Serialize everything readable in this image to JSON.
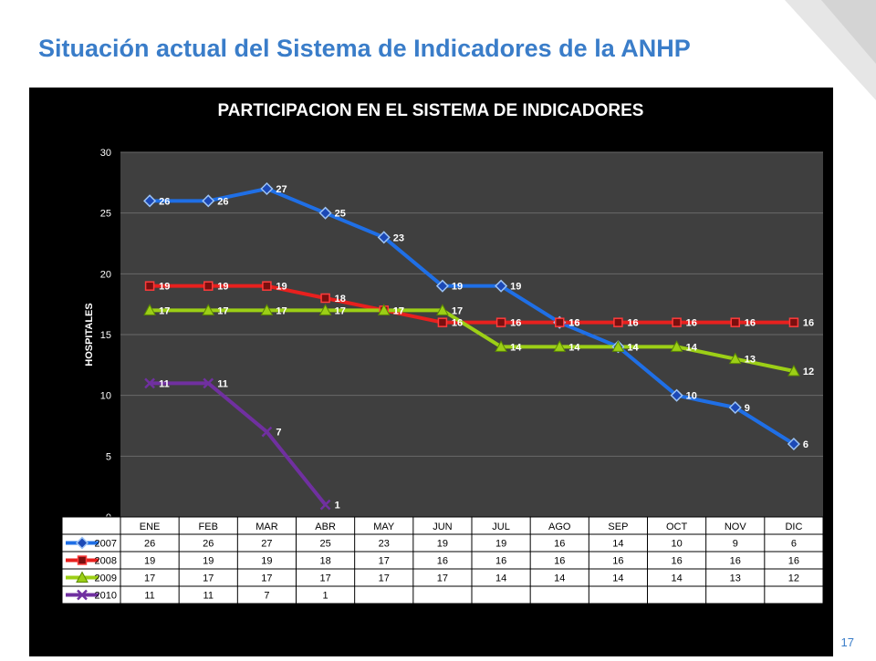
{
  "slide": {
    "title": "Situación actual del Sistema de Indicadores de la ANHP",
    "page_number": "17"
  },
  "colors": {
    "title": "#3a7dc9",
    "panel_bg": "#000000",
    "plot_bg": "#3f3f3f",
    "grid": "#6a6a6a",
    "table_bg": "#ffffff"
  },
  "chart_data": {
    "type": "line",
    "title": "PARTICIPACION EN EL SISTEMA DE INDICADORES",
    "xlabel": "",
    "ylabel": "HOSPITALES",
    "ylim": [
      0,
      30
    ],
    "yticks": [
      0,
      5,
      10,
      15,
      20,
      25,
      30
    ],
    "grid": true,
    "legend": "data-table",
    "categories": [
      "ENE",
      "FEB",
      "MAR",
      "ABR",
      "MAY",
      "JUN",
      "JUL",
      "AGO",
      "SEP",
      "OCT",
      "NOV",
      "DIC"
    ],
    "series": [
      {
        "name": "2007",
        "color": "#1f6fe6",
        "marker": "diamond",
        "values": [
          26,
          26,
          27,
          25,
          23,
          19,
          19,
          16,
          14,
          10,
          9,
          6
        ]
      },
      {
        "name": "2008",
        "color": "#e8201e",
        "marker": "square",
        "values": [
          19,
          19,
          19,
          18,
          17,
          16,
          16,
          16,
          16,
          16,
          16,
          16
        ]
      },
      {
        "name": "2009",
        "color": "#9ccf16",
        "marker": "triangle",
        "values": [
          17,
          17,
          17,
          17,
          17,
          17,
          14,
          14,
          14,
          14,
          13,
          12
        ]
      },
      {
        "name": "2010",
        "color": "#7030a0",
        "marker": "x",
        "values": [
          11,
          11,
          7,
          1,
          null,
          null,
          null,
          null,
          null,
          null,
          null,
          null
        ]
      }
    ]
  }
}
